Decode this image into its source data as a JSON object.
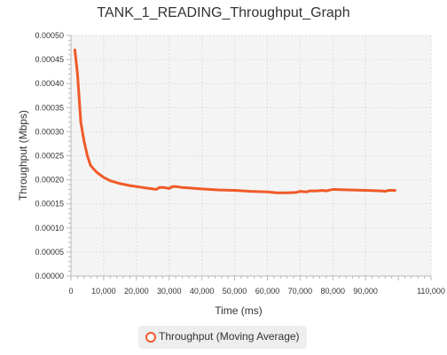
{
  "chart_data": {
    "type": "line",
    "title": "TANK_1_READING_Throughput_Graph",
    "xlabel": "Time (ms)",
    "ylabel": "Throughput (Mbps)",
    "xlim": [
      0,
      110000
    ],
    "ylim": [
      0,
      0.0005
    ],
    "x_ticks": [
      0,
      10000,
      20000,
      30000,
      40000,
      50000,
      60000,
      70000,
      80000,
      90000,
      110000
    ],
    "x_tick_labels": [
      "0",
      "10,000",
      "20,000",
      "30,000",
      "40,000",
      "50,000",
      "60,000",
      "70,000",
      "80,000",
      "90,000",
      "110,000"
    ],
    "y_ticks": [
      0,
      5e-05,
      0.0001,
      0.00015,
      0.0002,
      0.00025,
      0.0003,
      0.00035,
      0.0004,
      0.00045,
      0.0005
    ],
    "y_tick_labels": [
      "0.00000",
      "0.00005",
      "0.00010",
      "0.00015",
      "0.00020",
      "0.00025",
      "0.00030",
      "0.00035",
      "0.00040",
      "0.00045",
      "0.00050"
    ],
    "grid": true,
    "legend_position": "bottom",
    "series": [
      {
        "name": "Throughput (Moving Average)",
        "color": "#f05a28",
        "x": [
          1200,
          2000,
          3000,
          4000,
          5000,
          6000,
          7000,
          8000,
          10000,
          12000,
          15000,
          18000,
          20000,
          22000,
          24000,
          26000,
          27000,
          28500,
          30000,
          31000,
          32000,
          34000,
          36000,
          40000,
          45000,
          50000,
          55000,
          60000,
          63000,
          66000,
          69000,
          70000,
          72000,
          73000,
          75000,
          77000,
          78000,
          80000,
          85000,
          90000,
          95000,
          96000,
          97000,
          98000,
          99000
        ],
        "y": [
          0.00047,
          0.00042,
          0.00032,
          0.00028,
          0.00025,
          0.00023,
          0.000222,
          0.000215,
          0.000205,
          0.000198,
          0.000192,
          0.000188,
          0.000186,
          0.000184,
          0.000182,
          0.00018,
          0.000184,
          0.000184,
          0.000182,
          0.000186,
          0.000186,
          0.000184,
          0.000183,
          0.000181,
          0.000179,
          0.000178,
          0.000176,
          0.000175,
          0.000173,
          0.000173,
          0.000174,
          0.000176,
          0.000175,
          0.000177,
          0.000177,
          0.000178,
          0.000177,
          0.00018,
          0.000179,
          0.000178,
          0.000177,
          0.000176,
          0.000178,
          0.000178,
          0.000178
        ]
      }
    ]
  }
}
